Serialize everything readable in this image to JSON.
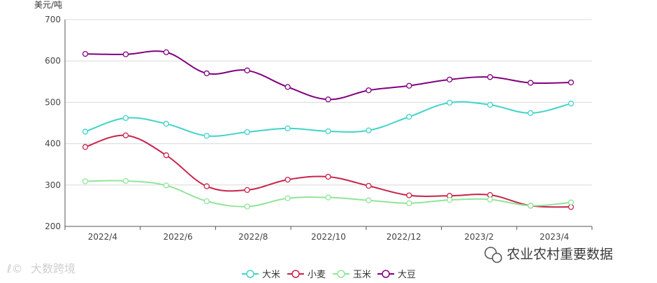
{
  "chart_data": {
    "type": "line",
    "y_unit": "美元/吨",
    "ylim": [
      200,
      700
    ],
    "yticks": [
      200,
      300,
      400,
      500,
      600,
      700
    ],
    "x_tick_labels": [
      "2022/4",
      "2022/6",
      "2022/8",
      "2022/10",
      "2022/12",
      "2023/2",
      "2023/4"
    ],
    "x": [
      "2022/4",
      "2022/5",
      "2022/6",
      "2022/7",
      "2022/8",
      "2022/9",
      "2022/10",
      "2022/11",
      "2022/12",
      "2023/1",
      "2023/2",
      "2023/3",
      "2023/4"
    ],
    "grid": "horizontal",
    "legend_position": "bottom-center",
    "series": [
      {
        "name": "大米",
        "color": "#40d4c8",
        "values": [
          429,
          462,
          448,
          419,
          428,
          437,
          430,
          432,
          465,
          499,
          494,
          474,
          497
        ]
      },
      {
        "name": "小麦",
        "color": "#c8234b",
        "values": [
          392,
          420,
          372,
          297,
          288,
          313,
          320,
          298,
          275,
          274,
          276,
          250,
          247
        ]
      },
      {
        "name": "玉米",
        "color": "#90e598",
        "values": [
          309,
          310,
          299,
          261,
          248,
          268,
          270,
          263,
          256,
          264,
          265,
          250,
          258
        ]
      },
      {
        "name": "大豆",
        "color": "#800080",
        "values": [
          617,
          616,
          621,
          570,
          577,
          537,
          507,
          529,
          540,
          555,
          561,
          547,
          548
        ]
      }
    ]
  },
  "watermark_left": "大数跨境",
  "watermark_right": "农业农村重要数据"
}
